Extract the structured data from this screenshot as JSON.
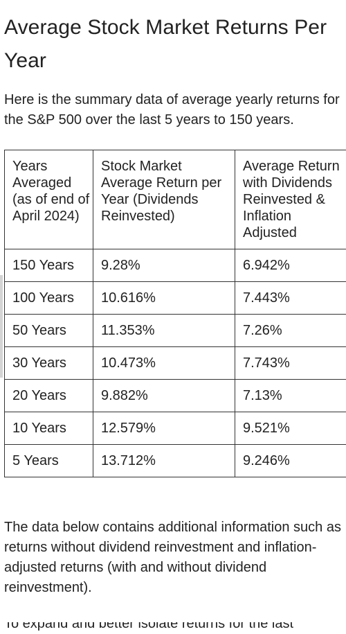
{
  "article": {
    "title": "Average Stock Market Returns Per Year",
    "intro": "Here is the summary data of average yearly returns for the S&P 500 over the last 5 years to 150 years.",
    "outro": "The data below contains additional information such as returns without dividend reinvestment and inflation-adjusted returns (with and without dividend reinvestment).",
    "next_line_partial": "To expand and better isolate returns for the last"
  },
  "table": {
    "headers": [
      "Years Averaged (as of end of April 2024)",
      "Stock Market Average Return per Year (Dividends Reinvested)",
      "Average Return with Dividends Reinvested & Inflation Adjusted"
    ],
    "rows": [
      [
        "150 Years",
        "9.28%",
        "6.942%"
      ],
      [
        "100 Years",
        "10.616%",
        "7.443%"
      ],
      [
        "50 Years",
        "11.353%",
        "7.26%"
      ],
      [
        "30 Years",
        "10.473%",
        "7.743%"
      ],
      [
        "20 Years",
        "9.882%",
        "7.13%"
      ],
      [
        "10 Years",
        "12.579%",
        "9.521%"
      ],
      [
        "5 Years",
        "13.712%",
        "9.246%"
      ]
    ]
  }
}
